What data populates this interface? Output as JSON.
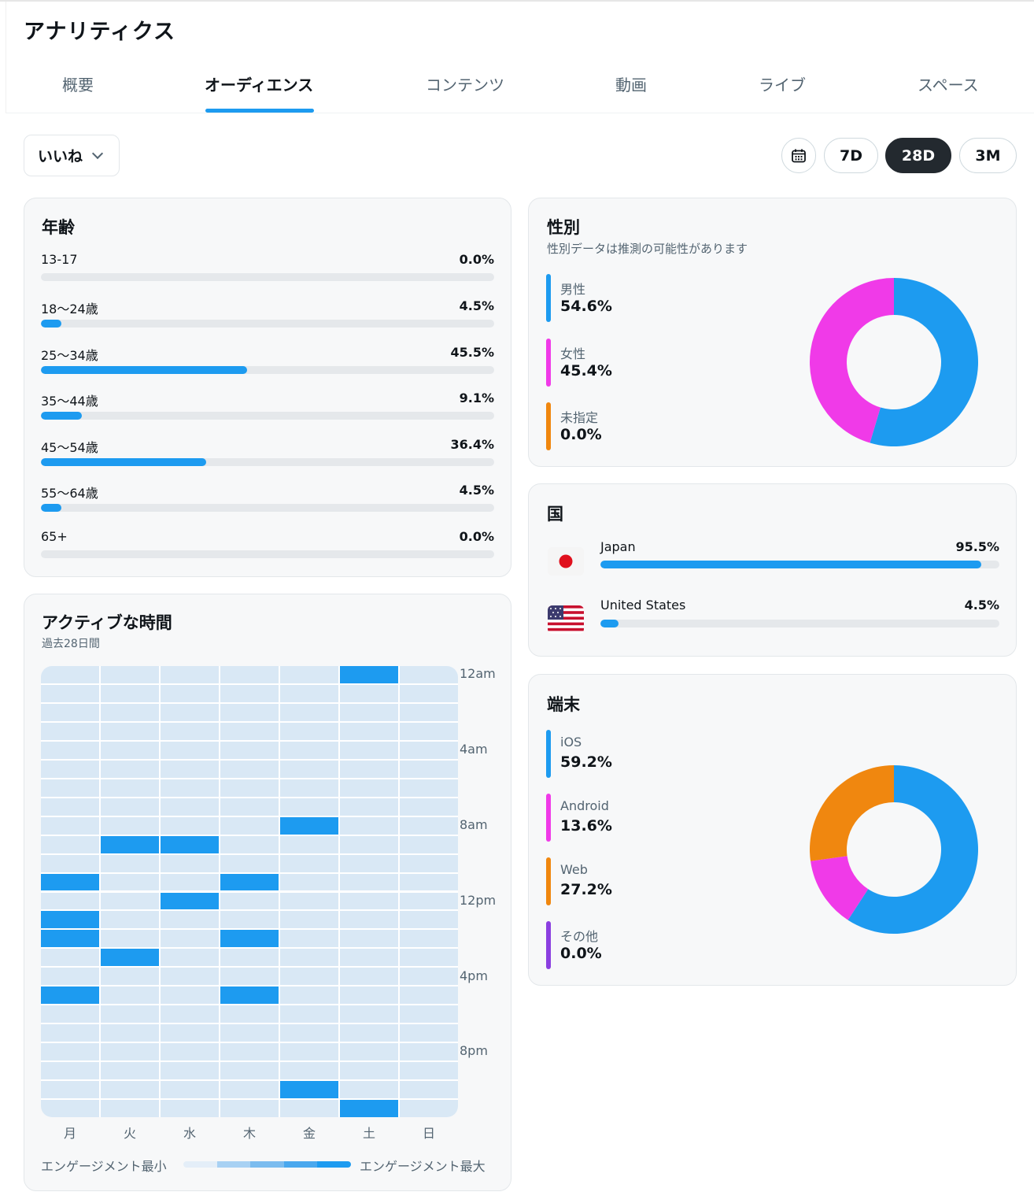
{
  "app": {
    "title": "アナリティクス"
  },
  "tabs": [
    {
      "label": "概要"
    },
    {
      "label": "オーディエンス",
      "active": true
    },
    {
      "label": "コンテンツ"
    },
    {
      "label": "動画"
    },
    {
      "label": "ライブ"
    },
    {
      "label": "スペース"
    }
  ],
  "filters": {
    "metric": "いいね",
    "ranges": [
      "7D",
      "28D",
      "3M"
    ],
    "active_range": "28D",
    "calendar_icon": "calendar-icon"
  },
  "age": {
    "title": "年齢",
    "rows": [
      {
        "label": "13-17",
        "value": "0.0%",
        "pct": 0.0
      },
      {
        "label": "18〜24歳",
        "value": "4.5%",
        "pct": 4.5
      },
      {
        "label": "25〜34歳",
        "value": "45.5%",
        "pct": 45.5
      },
      {
        "label": "35〜44歳",
        "value": "9.1%",
        "pct": 9.1
      },
      {
        "label": "45〜54歳",
        "value": "36.4%",
        "pct": 36.4
      },
      {
        "label": "55〜64歳",
        "value": "4.5%",
        "pct": 4.5
      },
      {
        "label": "65+",
        "value": "0.0%",
        "pct": 0.0
      }
    ]
  },
  "gender": {
    "title": "性別",
    "subtitle": "性別データは推測の可能性があります",
    "items": [
      {
        "label": "男性",
        "value": "54.6%",
        "pct": 54.6,
        "color": "#1d9bf0"
      },
      {
        "label": "女性",
        "value": "45.4%",
        "pct": 45.4,
        "color": "#f03ae8"
      },
      {
        "label": "未指定",
        "value": "0.0%",
        "pct": 0.0,
        "color": "#f0870f"
      }
    ]
  },
  "country": {
    "title": "国",
    "items": [
      {
        "name": "Japan",
        "value": "95.5%",
        "pct": 95.5,
        "flag": "japan-flag"
      },
      {
        "name": "United States",
        "value": "4.5%",
        "pct": 4.5,
        "flag": "us-flag"
      }
    ]
  },
  "device": {
    "title": "端末",
    "items": [
      {
        "label": "iOS",
        "value": "59.2%",
        "pct": 59.2,
        "color": "#1d9bf0"
      },
      {
        "label": "Android",
        "value": "13.6%",
        "pct": 13.6,
        "color": "#f03ae8"
      },
      {
        "label": "Web",
        "value": "27.2%",
        "pct": 27.2,
        "color": "#f0870f"
      },
      {
        "label": "その他",
        "value": "0.0%",
        "pct": 0.0,
        "color": "#8b3fe0"
      }
    ]
  },
  "activity": {
    "title": "アクティブな時間",
    "subtitle": "過去28日間",
    "days": [
      "月",
      "火",
      "水",
      "木",
      "金",
      "土",
      "日"
    ],
    "time_labels": [
      "12am",
      "4am",
      "8am",
      "12pm",
      "4pm",
      "8pm"
    ],
    "hours": 24,
    "high_cells": [
      [
        0,
        5
      ],
      [
        8,
        4
      ],
      [
        9,
        1
      ],
      [
        9,
        2
      ],
      [
        11,
        0
      ],
      [
        11,
        3
      ],
      [
        12,
        2
      ],
      [
        13,
        0
      ],
      [
        14,
        0
      ],
      [
        14,
        3
      ],
      [
        15,
        1
      ],
      [
        17,
        0
      ],
      [
        17,
        3
      ],
      [
        22,
        4
      ],
      [
        23,
        5
      ]
    ],
    "scale_min": "エンゲージメント最小",
    "scale_max": "エンゲージメント最大",
    "colors": {
      "low": "#d9e8f5",
      "high": "#1d9bf0"
    }
  }
}
